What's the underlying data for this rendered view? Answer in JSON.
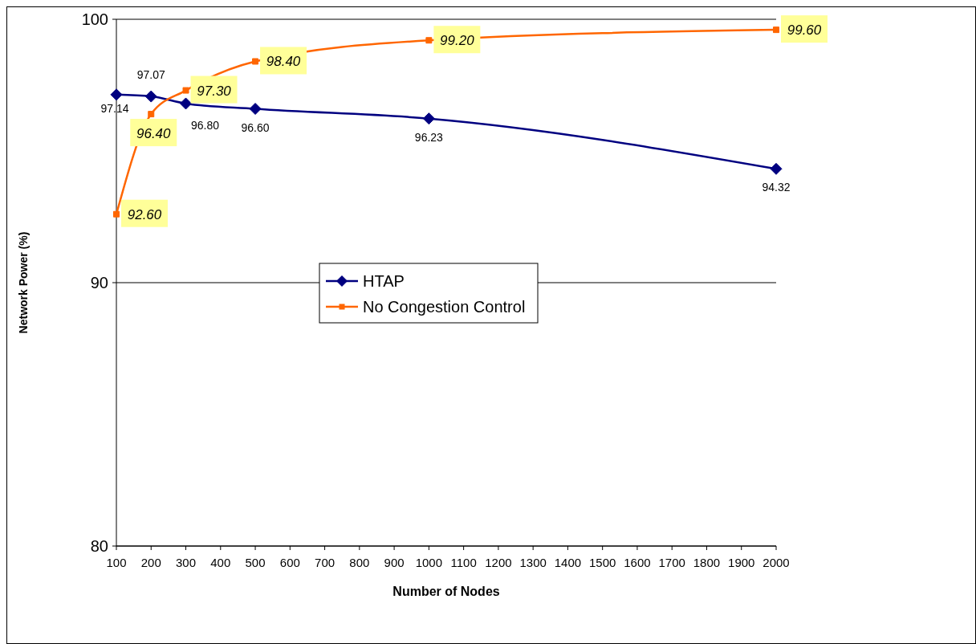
{
  "chart_data": {
    "type": "line",
    "xlabel": "Number of Nodes",
    "ylabel": "Network Power (%)",
    "xlim": [
      100,
      2000
    ],
    "xticks": [
      100,
      200,
      300,
      400,
      500,
      600,
      700,
      800,
      900,
      1000,
      1100,
      1200,
      1300,
      1400,
      1500,
      1600,
      1700,
      1800,
      1900,
      2000
    ],
    "ylim": [
      80,
      100
    ],
    "yticks": [
      80,
      90,
      100
    ],
    "grid": "y",
    "legend": "center",
    "line_style": "solid",
    "series": [
      {
        "name": "HTAP",
        "color": "#000080",
        "marker": "diamond",
        "x": [
          100,
          200,
          300,
          500,
          1000,
          2000
        ],
        "values": [
          97.14,
          97.07,
          96.8,
          96.6,
          96.23,
          94.32
        ],
        "value_labels": [
          "97.14",
          "97.07",
          "96.80",
          "96.60",
          "96.23",
          "94.32"
        ]
      },
      {
        "name": "No Congestion Control",
        "color": "#ff6600",
        "marker": "square",
        "x": [
          100,
          200,
          300,
          500,
          1000,
          2000
        ],
        "values": [
          92.6,
          96.4,
          97.3,
          98.4,
          99.2,
          99.6
        ],
        "value_labels": [
          "92.60",
          "96.40",
          "97.30",
          "98.40",
          "99.20",
          "99.60"
        ]
      }
    ]
  }
}
